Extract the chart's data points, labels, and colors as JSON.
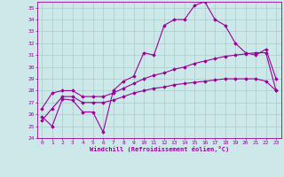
{
  "xlabel": "Windchill (Refroidissement éolien,°C)",
  "background_color": "#cce8e8",
  "grid_color": "#aacccc",
  "line_color": "#990099",
  "xlim": [
    -0.5,
    23.5
  ],
  "ylim": [
    24,
    35.5
  ],
  "yticks": [
    24,
    25,
    26,
    27,
    28,
    29,
    30,
    31,
    32,
    33,
    34,
    35
  ],
  "xticks": [
    0,
    1,
    2,
    3,
    4,
    5,
    6,
    7,
    8,
    9,
    10,
    11,
    12,
    13,
    14,
    15,
    16,
    17,
    18,
    19,
    20,
    21,
    22,
    23
  ],
  "curve1_x": [
    0,
    1,
    2,
    3,
    4,
    5,
    6,
    7,
    8,
    9,
    10,
    11,
    12,
    13,
    14,
    15,
    16,
    17,
    18,
    19,
    20,
    21,
    22,
    23
  ],
  "curve1_y": [
    25.8,
    25.0,
    27.3,
    27.2,
    26.2,
    26.2,
    24.5,
    28.0,
    28.8,
    29.2,
    31.2,
    31.0,
    33.5,
    34.0,
    34.0,
    35.2,
    35.5,
    34.0,
    33.5,
    32.0,
    31.2,
    31.0,
    31.5,
    29.0
  ],
  "curve2_x": [
    0,
    1,
    2,
    3,
    4,
    5,
    6,
    7,
    8,
    9,
    10,
    11,
    12,
    13,
    14,
    15,
    16,
    17,
    18,
    19,
    20,
    21,
    22,
    23
  ],
  "curve2_y": [
    26.5,
    27.8,
    28.0,
    28.0,
    27.5,
    27.5,
    27.5,
    27.8,
    28.2,
    28.6,
    29.0,
    29.3,
    29.5,
    29.8,
    30.0,
    30.3,
    30.5,
    30.7,
    30.9,
    31.0,
    31.1,
    31.2,
    31.2,
    28.0
  ],
  "curve3_x": [
    0,
    1,
    2,
    3,
    4,
    5,
    6,
    7,
    8,
    9,
    10,
    11,
    12,
    13,
    14,
    15,
    16,
    17,
    18,
    19,
    20,
    21,
    22,
    23
  ],
  "curve3_y": [
    25.5,
    26.5,
    27.5,
    27.5,
    27.0,
    27.0,
    27.0,
    27.2,
    27.5,
    27.8,
    28.0,
    28.2,
    28.3,
    28.5,
    28.6,
    28.7,
    28.8,
    28.9,
    29.0,
    29.0,
    29.0,
    29.0,
    28.8,
    28.0
  ]
}
